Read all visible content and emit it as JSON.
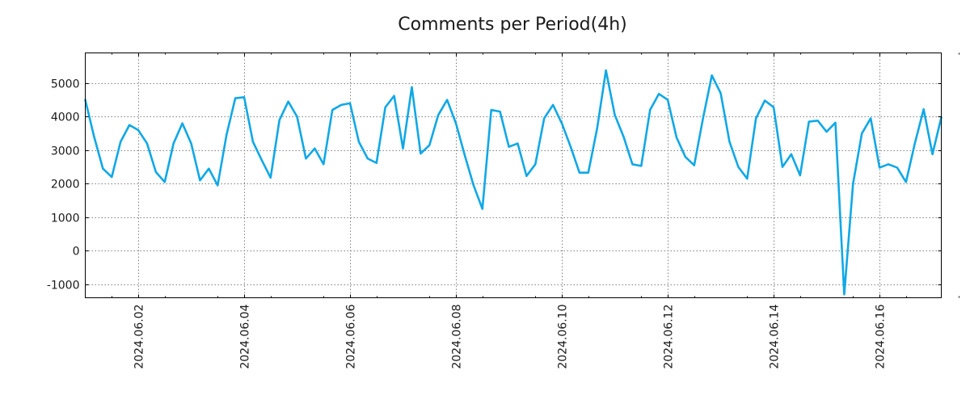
{
  "chart_data": {
    "type": "line",
    "title": "Comments per Period(4h)",
    "xlabel": "",
    "ylabel": "",
    "ylim": [
      -1400,
      5900
    ],
    "y_ticks": [
      -1000,
      0,
      1000,
      2000,
      3000,
      4000,
      5000
    ],
    "y_tick_labels": [
      "-1000",
      "0",
      "1000",
      "2000",
      "3000",
      "4000",
      "5000"
    ],
    "x_ticks": [
      1,
      3,
      5,
      7,
      9,
      11,
      13,
      15
    ],
    "x_minor_ticks": [
      0.5,
      1.5,
      2.5,
      3.5,
      4.5,
      5.5,
      6.5,
      7.5,
      8.5,
      9.5,
      10.5,
      11.5,
      12.5,
      13.5,
      14.5,
      15.5,
      16.5
    ],
    "x_tick_labels": [
      "2024.06.02",
      "2024.06.04",
      "2024.06.06",
      "2024.06.08",
      "2024.06.10",
      "2024.06.12",
      "2024.06.14",
      "2024.06.16"
    ],
    "x_range_days": [
      0.0,
      16.167
    ],
    "x_step_days": 0.16667,
    "grid": true,
    "color": "#10a8e6",
    "series": [
      {
        "name": "comments",
        "values": [
          4500,
          3400,
          2450,
          2200,
          3250,
          3750,
          3600,
          3200,
          2350,
          2050,
          3200,
          3800,
          3200,
          2100,
          2450,
          1950,
          3450,
          4550,
          4580,
          3250,
          2700,
          2180,
          3900,
          4450,
          4000,
          2750,
          3050,
          2580,
          4200,
          4350,
          4400,
          3250,
          2750,
          2620,
          4280,
          4620,
          3050,
          4880,
          2900,
          3150,
          4050,
          4500,
          3800,
          2850,
          1950,
          1250,
          4200,
          4150,
          3100,
          3200,
          2230,
          2580,
          3950,
          4350,
          3800,
          3100,
          2330,
          2330,
          3650,
          5380,
          4050,
          3400,
          2580,
          2530,
          4200,
          4680,
          4500,
          3380,
          2800,
          2550,
          3950,
          5230,
          4700,
          3250,
          2500,
          2150,
          3950,
          4480,
          4280,
          2500,
          2880,
          2250,
          3850,
          3880,
          3550,
          3820,
          -1300,
          2000,
          3500,
          3950,
          2480,
          2580,
          2480,
          2050,
          3200,
          4220,
          2880,
          3980
        ]
      }
    ]
  }
}
